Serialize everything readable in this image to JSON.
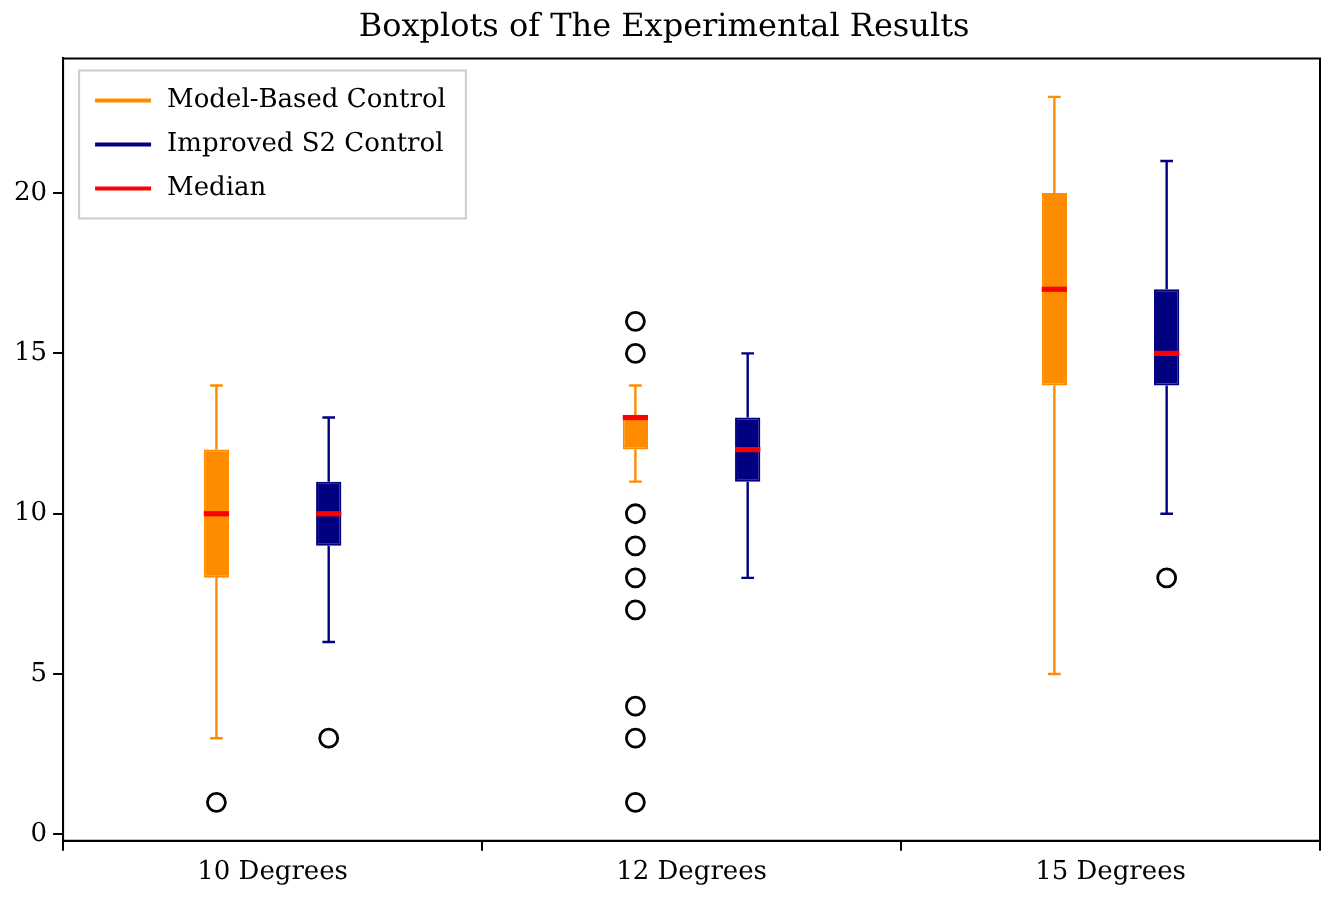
{
  "chart_data": {
    "type": "box",
    "title": "Boxplots of The Experimental Results",
    "categories": [
      "10 Degrees",
      "12 Degrees",
      "15 Degrees"
    ],
    "series": [
      {
        "name": "Model-Based Control",
        "color": "#ff8c00",
        "boxes": [
          {
            "low": 3,
            "q1": 8,
            "median": 10,
            "q3": 12,
            "high": 14,
            "outliers": [
              1
            ]
          },
          {
            "low": 11,
            "q1": 12,
            "median": 13,
            "q3": 13,
            "high": 14,
            "outliers": [
              16,
              15,
              10,
              9,
              8,
              7,
              4,
              3,
              1
            ]
          },
          {
            "low": 5,
            "q1": 14,
            "median": 17,
            "q3": 20,
            "high": 23
          }
        ]
      },
      {
        "name": "Improved S2 Control",
        "color": "#000080",
        "boxes": [
          {
            "low": 6,
            "q1": 9,
            "median": 10,
            "q3": 11,
            "high": 13,
            "outliers": [
              3
            ]
          },
          {
            "low": 8,
            "q1": 11,
            "median": 12,
            "q3": 13,
            "high": 15
          },
          {
            "low": 10,
            "q1": 14,
            "median": 15,
            "q3": 17,
            "high": 21,
            "outliers": [
              8
            ]
          }
        ]
      },
      {
        "name": "Median",
        "color": "#ff0000",
        "type": "line",
        "values": [
          null,
          null,
          null
        ]
      }
    ],
    "ylim": [
      -0.2,
      24.2
    ],
    "yticks": [
      0,
      5,
      10,
      15,
      20
    ],
    "legend": "top left",
    "grid": false,
    "marker": "circle"
  }
}
